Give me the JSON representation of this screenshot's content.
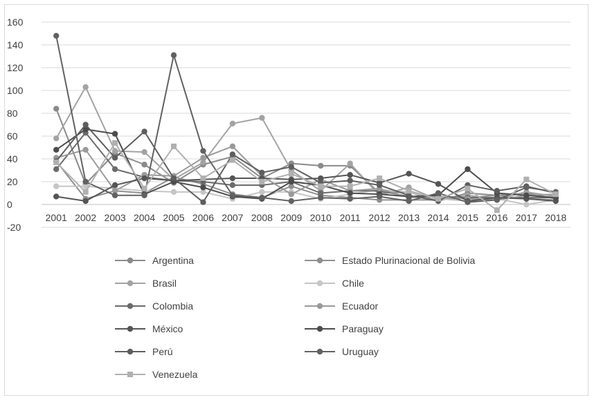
{
  "chart_data": {
    "type": "line",
    "title": "",
    "xlabel": "",
    "ylabel": "",
    "categories": [
      "2001",
      "2002",
      "2003",
      "2004",
      "2005",
      "2006",
      "2007",
      "2008",
      "2009",
      "2010",
      "2011",
      "2012",
      "2013",
      "2014",
      "2015",
      "2016",
      "2017",
      "2018"
    ],
    "y_ticks": [
      "160",
      "140",
      "120",
      "100",
      "80",
      "60",
      "40",
      "20",
      "0",
      "-20"
    ],
    "ylim": [
      -20,
      160
    ],
    "grid": "horizontal",
    "legend_position": "bottom",
    "series": [
      {
        "name": "Argentina",
        "color": "#8a8a8a",
        "marker": "circle",
        "values": [
          84,
          18,
          45,
          35,
          19,
          35,
          42,
          23,
          36,
          34,
          34,
          10,
          11,
          3,
          10,
          8,
          10,
          5
        ]
      },
      {
        "name": "Estado Plurinacional de Bolivia",
        "color": "#8f8f8f",
        "marker": "circle",
        "values": [
          38,
          5,
          12,
          10,
          24,
          18,
          9,
          6,
          16,
          8,
          6,
          4,
          4,
          4,
          6,
          8,
          5,
          4
        ]
      },
      {
        "name": "Brasil",
        "color": "#a3a3a3",
        "marker": "circle",
        "values": [
          58,
          103,
          47,
          46,
          22,
          37,
          71,
          76,
          30,
          12,
          36,
          8,
          15,
          4,
          8,
          5,
          11,
          7
        ]
      },
      {
        "name": "Chile",
        "color": "#c5c5c5",
        "marker": "circle",
        "values": [
          16,
          16,
          14,
          12,
          11,
          11,
          5,
          11,
          11,
          5,
          9,
          13,
          11,
          5,
          3,
          5,
          0,
          4
        ]
      },
      {
        "name": "Colombia",
        "color": "#6b6b6b",
        "marker": "circle",
        "values": [
          31,
          63,
          31,
          24,
          21,
          20,
          17,
          17,
          20,
          10,
          12,
          12,
          7,
          7,
          6,
          6,
          6,
          6
        ]
      },
      {
        "name": "Ecuador",
        "color": "#9a9a9a",
        "marker": "circle",
        "values": [
          41,
          48,
          12,
          26,
          25,
          41,
          51,
          25,
          9,
          22,
          12,
          14,
          6,
          7,
          5,
          4,
          8,
          9
        ]
      },
      {
        "name": "México",
        "color": "#555555",
        "marker": "circle",
        "values": [
          7,
          3,
          17,
          23,
          21,
          22,
          23,
          23,
          22,
          23,
          26,
          19,
          27,
          18,
          3,
          6,
          5,
          3
        ]
      },
      {
        "name": "Paraguay",
        "color": "#4c4c4c",
        "marker": "circle",
        "values": [
          48,
          66,
          62,
          9,
          20,
          15,
          7,
          5,
          20,
          17,
          10,
          9,
          7,
          8,
          31,
          10,
          8,
          6
        ]
      },
      {
        "name": "Perú",
        "color": "#5e5e5e",
        "marker": "circle",
        "values": [
          38,
          70,
          41,
          64,
          23,
          2,
          44,
          28,
          33,
          19,
          21,
          17,
          8,
          3,
          17,
          12,
          16,
          10
        ]
      },
      {
        "name": "Uruguay",
        "color": "#616161",
        "marker": "circle",
        "values": [
          148,
          20,
          8,
          8,
          131,
          47,
          8,
          6,
          3,
          6,
          5,
          7,
          3,
          10,
          2,
          4,
          15,
          11
        ]
      },
      {
        "name": "Venezuela",
        "color": "#b0b0b0",
        "marker": "square",
        "values": [
          37,
          11,
          54,
          14,
          51,
          23,
          39,
          20,
          27,
          16,
          16,
          23,
          12,
          5,
          14,
          -5,
          22,
          9
        ]
      }
    ],
    "legend_layout": {
      "columns": 2,
      "order": [
        "Argentina",
        "Estado Plurinacional de Bolivia",
        "Brasil",
        "Chile",
        "Colombia",
        "Ecuador",
        "México",
        "Paraguay",
        "Perú",
        "Uruguay",
        "Venezuela"
      ]
    }
  }
}
